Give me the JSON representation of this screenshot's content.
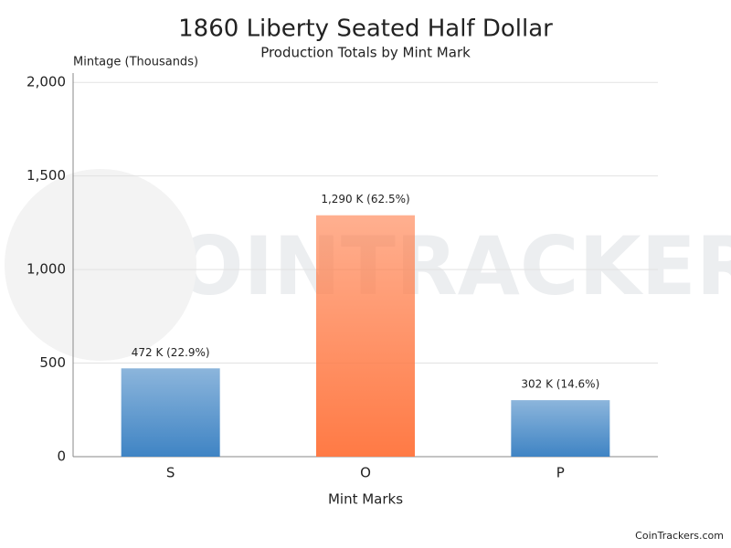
{
  "chart_data": {
    "type": "bar",
    "title": "1860 Liberty Seated Half Dollar",
    "subtitle": "Production Totals by Mint Mark",
    "y_axis_label": "Mintage (Thousands)",
    "x_axis_label": "Mint Marks",
    "categories": [
      "S",
      "O",
      "P"
    ],
    "values": [
      472,
      1290,
      302
    ],
    "value_labels": [
      "472 K (22.9%)",
      "1,290 K (62.5%)",
      "302 K (14.6%)"
    ],
    "colors": [
      "#3f84c4",
      "#ff7a45",
      "#3f84c4"
    ],
    "ylim": [
      0,
      2050
    ],
    "yticks": [
      0,
      500,
      {
        "value": 1000,
        "label": "1,000"
      },
      {
        "value": 1500,
        "label": "1,500"
      },
      {
        "value": 2000,
        "label": "2,000"
      }
    ],
    "grid": true,
    "watermark": "COINTRACKERS",
    "credit": "CoinTrackers.com"
  }
}
